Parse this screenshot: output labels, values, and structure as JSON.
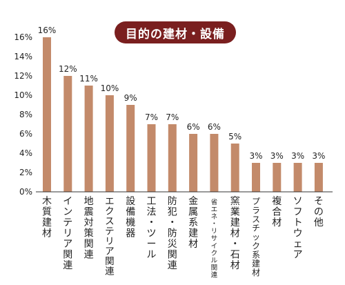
{
  "colors": {
    "bar": "#c38a6a",
    "title_bg": "#7a1f1f",
    "axis": "#333333",
    "text": "#222222"
  },
  "chart_data": {
    "type": "bar",
    "title": "目的の建材・設備",
    "categories": [
      "木質建材",
      "インテリア関連",
      "地震対策関連",
      "エクステリア関連",
      "設備機器",
      "工法・ツール",
      "防犯・防災関連",
      "金属系建材",
      "省エネ・リサイクル関連",
      "窯業建材・石材",
      "プラスチック系建材",
      "複合材",
      "ソフトウェア",
      "その他"
    ],
    "values": [
      16,
      12,
      11,
      10,
      9,
      7,
      7,
      6,
      6,
      5,
      3,
      3,
      3,
      3
    ],
    "value_labels": [
      "16%",
      "12%",
      "11%",
      "10%",
      "9%",
      "7%",
      "7%",
      "6%",
      "6%",
      "5%",
      "3%",
      "3%",
      "3%",
      "3%"
    ],
    "ylim": [
      0,
      16
    ],
    "yticks": [
      0,
      2,
      4,
      6,
      8,
      10,
      12,
      14,
      16
    ],
    "ytick_labels": [
      "0%",
      "2%",
      "4%",
      "6%",
      "8%",
      "10%",
      "12%",
      "14%",
      "16%"
    ],
    "grid": false
  }
}
